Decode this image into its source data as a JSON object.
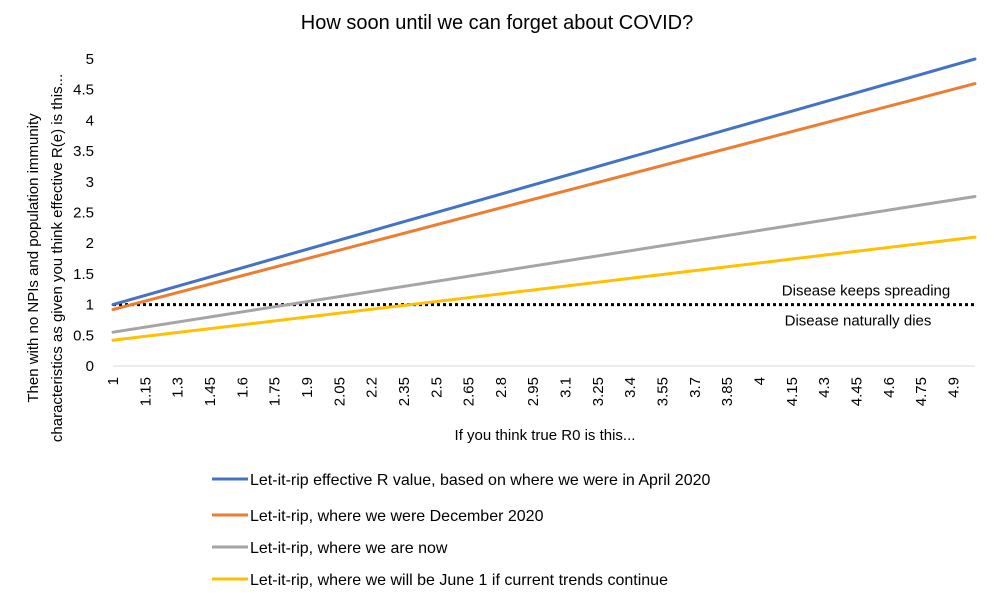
{
  "chart_data": {
    "type": "line",
    "title": "How soon until we can forget about COVID?",
    "xlabel": "If you think true R0 is this...",
    "ylabel_lines": [
      "Then with no NPIs and population immunity",
      "characteristics as given you think effective R(e) is this..."
    ],
    "xlim": [
      1,
      5
    ],
    "ylim": [
      0,
      5
    ],
    "yticks": [
      "0",
      "0.5",
      "1",
      "1.5",
      "2",
      "2.5",
      "3",
      "3.5",
      "4",
      "4.5",
      "5"
    ],
    "xtick_values": [
      1,
      1.15,
      1.3,
      1.45,
      1.6,
      1.75,
      1.9,
      2.05,
      2.2,
      2.35,
      2.5,
      2.65,
      2.8,
      2.95,
      3.1,
      3.25,
      3.4,
      3.55,
      3.7,
      3.85,
      4,
      4.15,
      4.3,
      4.45,
      4.6,
      4.75,
      4.9
    ],
    "xticks": [
      "1",
      "1.15",
      "1.3",
      "1.45",
      "1.6",
      "1.75",
      "1.9",
      "2.05",
      "2.2",
      "2.35",
      "2.5",
      "2.65",
      "2.8",
      "2.95",
      "3.1",
      "3.25",
      "3.4",
      "3.55",
      "3.7",
      "3.85",
      "4",
      "4.15",
      "4.3",
      "4.45",
      "4.6",
      "4.75",
      "4.9"
    ],
    "threshold": {
      "y": 1,
      "label_above": "Disease keeps spreading",
      "label_below": "Disease naturally dies"
    },
    "series": [
      {
        "name": "Let-it-rip effective R value, based on where we were in April 2020",
        "color": "#4472C4",
        "x": [
          1,
          5
        ],
        "y": [
          1.0,
          5.0
        ]
      },
      {
        "name": "Let-it-rip, where we were December 2020",
        "color": "#ED7D31",
        "x": [
          1,
          5
        ],
        "y": [
          0.92,
          4.6
        ]
      },
      {
        "name": "Let-it-rip, where we are now",
        "color": "#A5A5A5",
        "x": [
          1,
          5
        ],
        "y": [
          0.55,
          2.76
        ]
      },
      {
        "name": "Let-it-rip, where we will be June 1 if current trends continue",
        "color": "#FFC000",
        "x": [
          1,
          5
        ],
        "y": [
          0.42,
          2.1
        ]
      }
    ]
  }
}
